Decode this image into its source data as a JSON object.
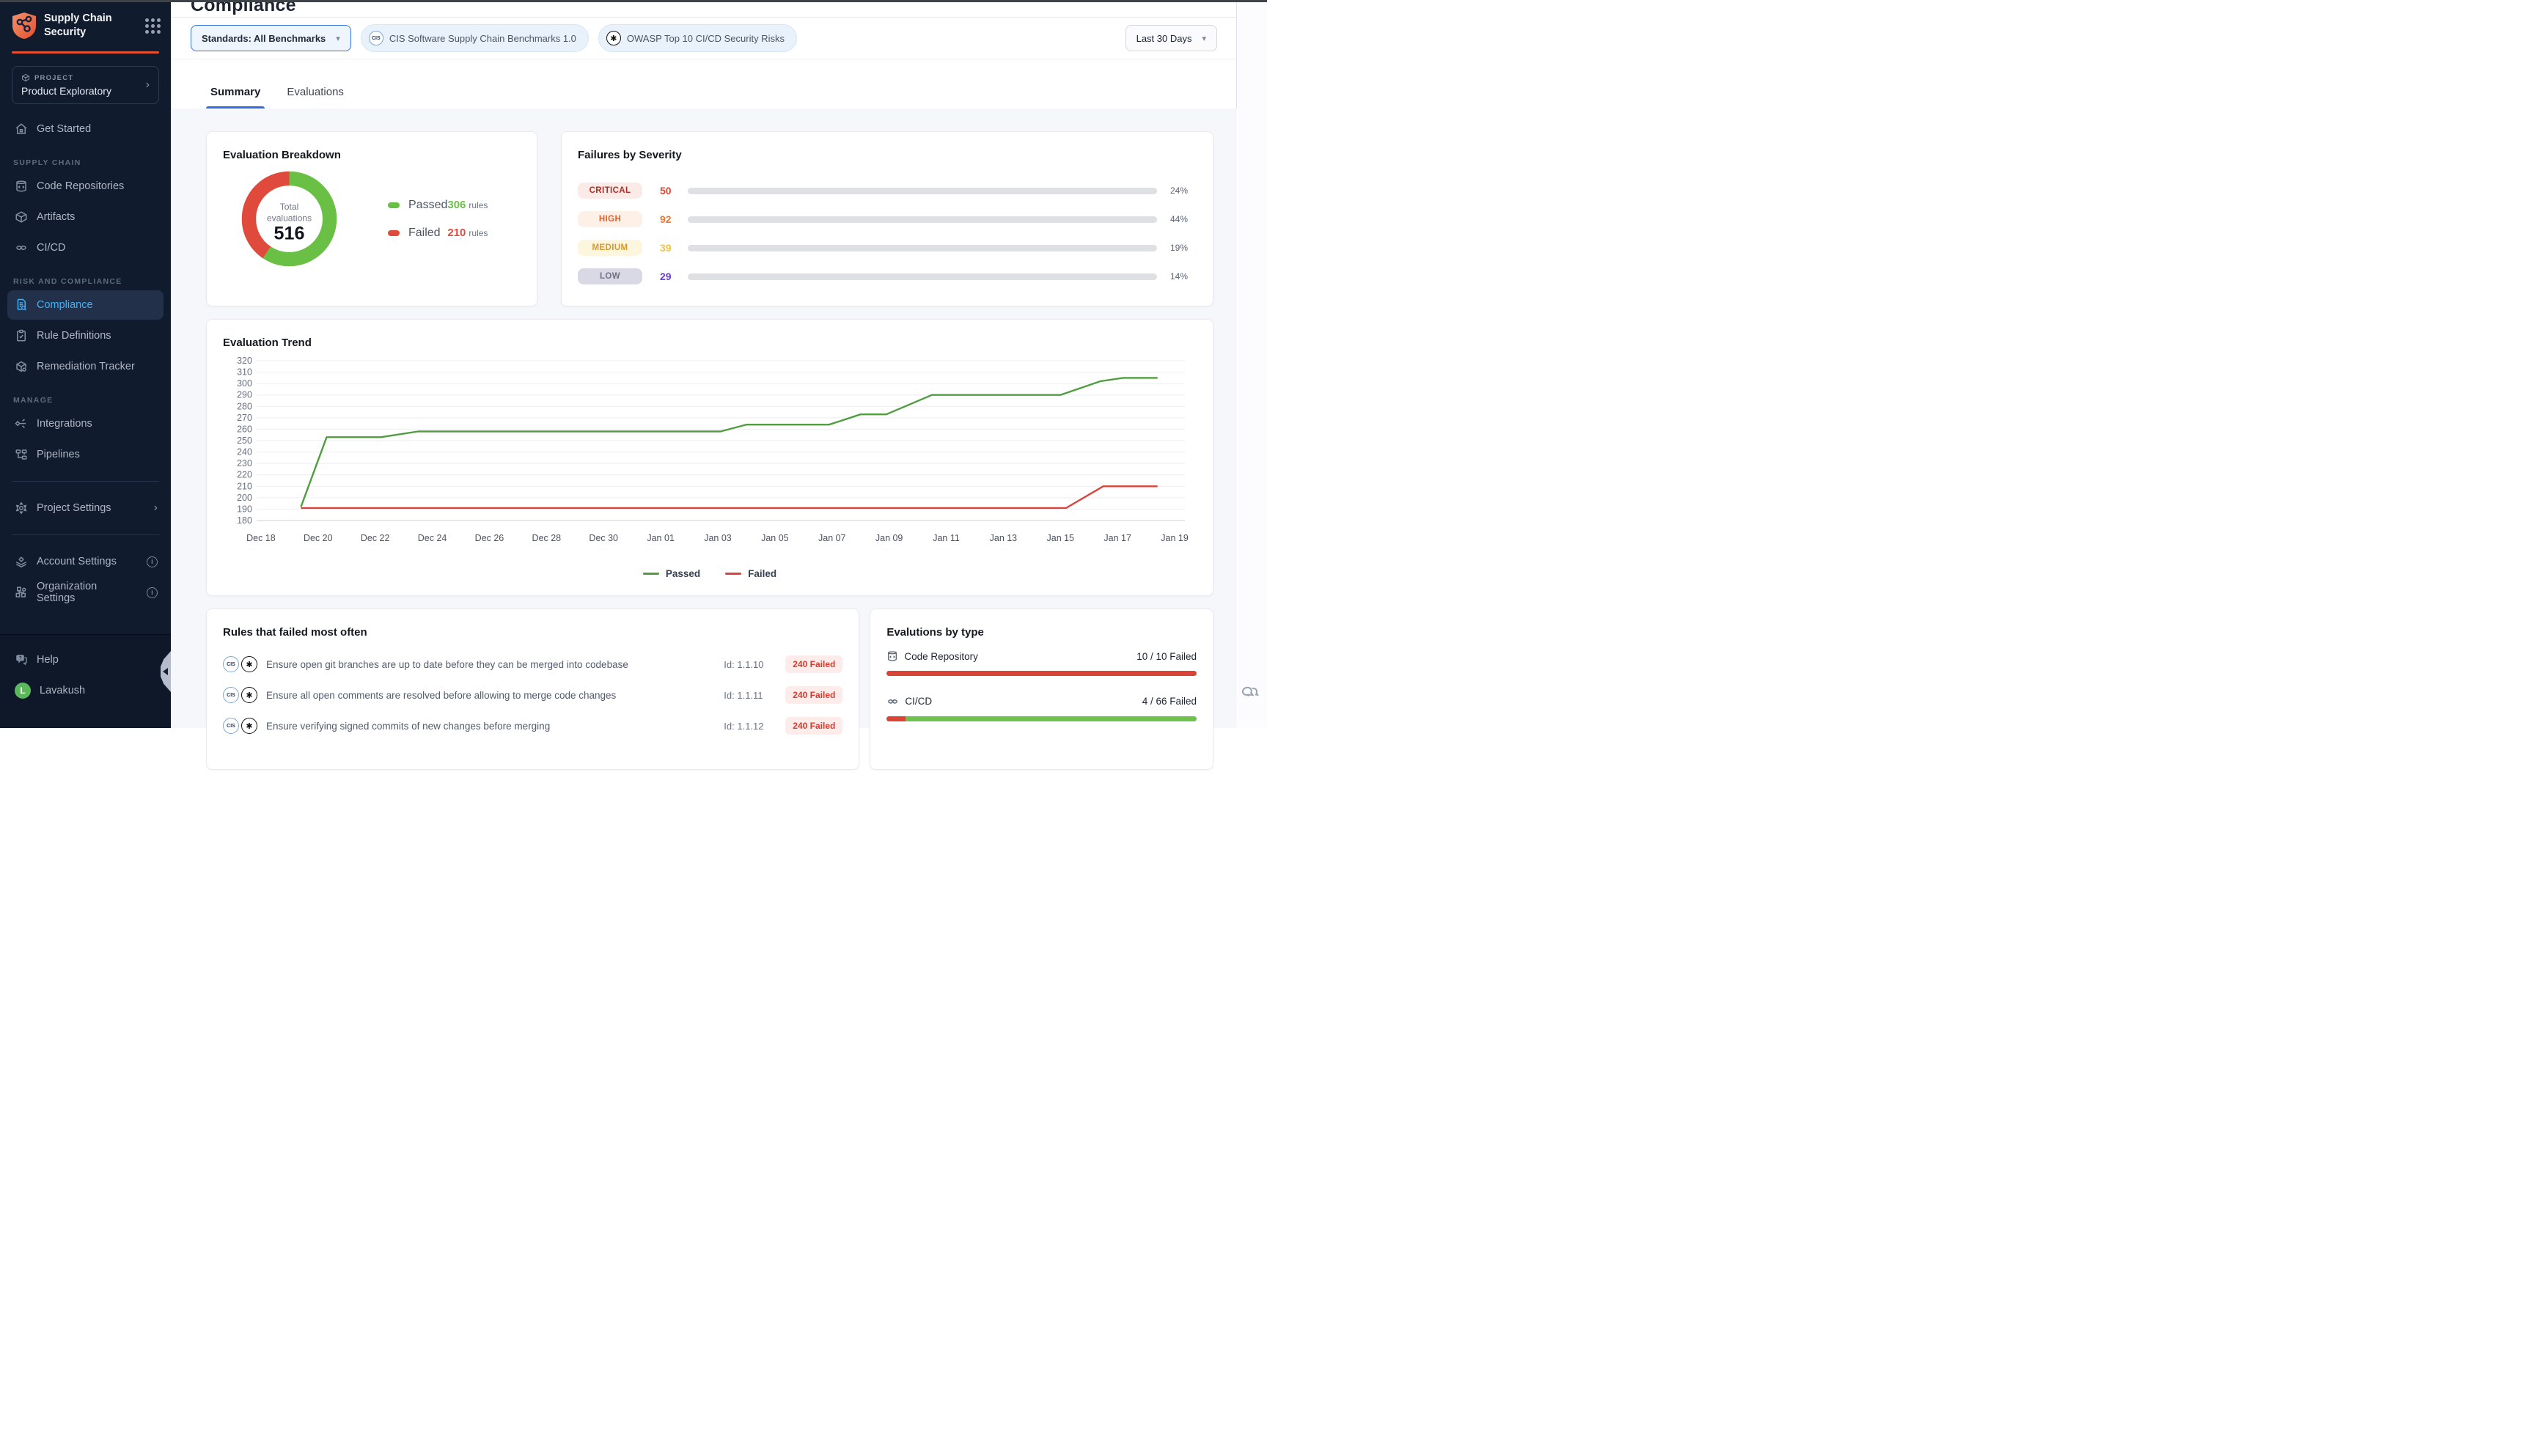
{
  "colors": {
    "accent_red": "#e4502f",
    "sidebar_active_blue": "#41b2f5",
    "tab_blue": "#2e6de4",
    "passed_green": "#6abf45",
    "failed_red": "#df4a3c"
  },
  "sidebar": {
    "brand": {
      "title_line1": "Supply Chain",
      "title_line2": "Security"
    },
    "project": {
      "eyebrow": "PROJECT",
      "name": "Product Exploratory"
    },
    "sections": {
      "supply_chain": "SUPPLY CHAIN",
      "risk": "RISK AND COMPLIANCE",
      "manage": "MANAGE"
    },
    "items": [
      {
        "label": "Get Started"
      },
      {
        "label": "Code Repositories"
      },
      {
        "label": "Artifacts"
      },
      {
        "label": "CI/CD"
      },
      {
        "label": "Compliance"
      },
      {
        "label": "Rule Definitions"
      },
      {
        "label": "Remediation Tracker"
      },
      {
        "label": "Integrations"
      },
      {
        "label": "Pipelines"
      },
      {
        "label": "Project Settings"
      },
      {
        "label": "Account Settings"
      },
      {
        "label": "Organization Settings"
      }
    ],
    "footer": {
      "help": "Help",
      "user": "Lavakush",
      "avatar_initial": "L"
    }
  },
  "header": {
    "title": "Compliance",
    "standards_filter": "Standards: All Benchmarks",
    "chips": [
      {
        "label": "CIS Software Supply Chain Benchmarks 1.0"
      },
      {
        "label": "OWASP Top 10 CI/CD Security Risks"
      }
    ],
    "date_range": "Last 30 Days",
    "tabs": [
      {
        "label": "Summary"
      },
      {
        "label": "Evaluations"
      }
    ]
  },
  "rules": {
    "title": "Rules that failed most often",
    "items": [
      {
        "text": "Ensure open git branches are up to date before they can be merged into codebase",
        "id_label": "Id: 1.1.10",
        "badge": "240 Failed"
      },
      {
        "text": "Ensure all open comments are resolved before allowing to merge code changes",
        "id_label": "Id: 1.1.11",
        "badge": "240 Failed"
      },
      {
        "text": "Ensure verifying signed commits of new changes before merging",
        "id_label": "Id: 1.1.12",
        "badge": "240 Failed"
      }
    ]
  },
  "chart_data": [
    {
      "id": "evaluation_breakdown",
      "type": "pie",
      "title": "Evaluation Breakdown",
      "center_label_line1": "Total",
      "center_label_line2": "evaluations",
      "total": 516,
      "unit": "rules",
      "slices": [
        {
          "label": "Passed",
          "value": 306,
          "color": "#6abf45"
        },
        {
          "label": "Failed",
          "value": 210,
          "color": "#df4a3c"
        }
      ]
    },
    {
      "id": "failures_by_severity",
      "type": "bar",
      "title": "Failures by Severity",
      "rows": [
        {
          "label": "CRITICAL",
          "count": 50,
          "percent": 24,
          "percent_label": "24%",
          "badge_bg": "#faeae8",
          "badge_fg": "#b12d23",
          "count_color": "#e0442e",
          "bar_from": "#eab3ad",
          "bar_to": "#cb3a2a"
        },
        {
          "label": "HIGH",
          "count": 92,
          "percent": 44,
          "percent_label": "44%",
          "badge_bg": "#fdf0e6",
          "badge_fg": "#e4602b",
          "count_color": "#ed7630",
          "bar_from": "#f7cda9",
          "bar_to": "#ee8338"
        },
        {
          "label": "MEDIUM",
          "count": 39,
          "percent": 19,
          "percent_label": "19%",
          "badge_bg": "#fdf6df",
          "badge_fg": "#d59a2b",
          "count_color": "#f0c04a",
          "bar_from": "#f8eeb2",
          "bar_to": "#f3d454"
        },
        {
          "label": "LOW",
          "count": 29,
          "percent": 14,
          "percent_label": "14%",
          "badge_bg": "#d9d9e6",
          "badge_fg": "#6f6f86",
          "count_color": "#6d3fd4",
          "bar_from": "#c5aaf3",
          "bar_to": "#7a4fe8"
        }
      ]
    },
    {
      "id": "evaluation_trend",
      "type": "line",
      "title": "Evaluation Trend",
      "ylim": [
        180,
        320
      ],
      "y_tick_step": 10,
      "grid": true,
      "legend_position": "bottom",
      "x_start_label": "Dec 18",
      "x_tick_labels": [
        "Dec 18",
        "Dec 20",
        "Dec 22",
        "Dec 24",
        "Dec 26",
        "Dec 28",
        "Dec 30",
        "Jan 01",
        "Jan 03",
        "Jan 05",
        "Jan 07",
        "Jan 09",
        "Jan 11",
        "Jan 13",
        "Jan 15",
        "Jan 17",
        "Jan 19"
      ],
      "x_tick_interval_days": 2,
      "x_range_days": [
        0,
        32
      ],
      "series": [
        {
          "name": "Passed",
          "color": "#4f9d3f",
          "points": [
            [
              1.4,
              192
            ],
            [
              2.3,
              253
            ],
            [
              4.2,
              253
            ],
            [
              5.5,
              258
            ],
            [
              16.1,
              258
            ],
            [
              17.0,
              264
            ],
            [
              19.9,
              264
            ],
            [
              21.0,
              273
            ],
            [
              21.9,
              273
            ],
            [
              23.5,
              290
            ],
            [
              28.0,
              290
            ],
            [
              29.4,
              302
            ],
            [
              30.2,
              305
            ],
            [
              31.4,
              305
            ]
          ]
        },
        {
          "name": "Failed",
          "color": "#d8453c",
          "points": [
            [
              1.4,
              191
            ],
            [
              28.2,
              191
            ],
            [
              29.5,
              210
            ],
            [
              31.4,
              210
            ]
          ]
        }
      ]
    },
    {
      "id": "evalutions_by_type",
      "type": "bar",
      "title": "Evalutions by type",
      "rows": [
        {
          "label": "Code Repository",
          "failed": 10,
          "total": 10,
          "value_label": "10 / 10 Failed",
          "failed_color": "#d94436",
          "passed_color": "#6cc24a"
        },
        {
          "label": "CI/CD",
          "failed": 4,
          "total": 66,
          "value_label": "4 / 66 Failed",
          "failed_color": "#d94436",
          "passed_color": "#6cc24a"
        }
      ]
    }
  ]
}
